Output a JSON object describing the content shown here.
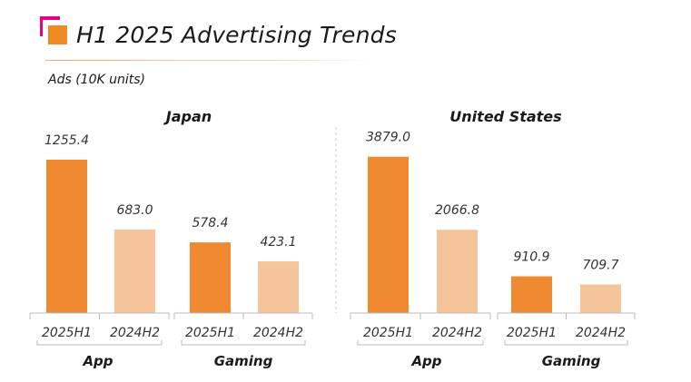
{
  "header": {
    "title": "H1 2025 Advertising Trends",
    "unit_label": "Ads (10K units)"
  },
  "colors": {
    "current": "#f08a30",
    "previous": "#f6c49a",
    "brand_pink": "#e6007e",
    "brand_orange": "#f08a24"
  },
  "chart_data": {
    "type": "bar",
    "ylabel": "Ads (10K units)",
    "panels": [
      {
        "title": "Japan",
        "ylim": [
          0,
          1300
        ],
        "groups": [
          {
            "name": "App",
            "bars": [
              {
                "label": "2025H1",
                "value": 1255.4
              },
              {
                "label": "2024H2",
                "value": 683.0
              }
            ]
          },
          {
            "name": "Gaming",
            "bars": [
              {
                "label": "2025H1",
                "value": 578.4
              },
              {
                "label": "2024H2",
                "value": 423.1
              }
            ]
          }
        ]
      },
      {
        "title": "United States",
        "ylim": [
          0,
          3940
        ],
        "groups": [
          {
            "name": "App",
            "bars": [
              {
                "label": "2025H1",
                "value": 3879.0
              },
              {
                "label": "2024H2",
                "value": 2066.8
              }
            ]
          },
          {
            "name": "Gaming",
            "bars": [
              {
                "label": "2025H1",
                "value": 910.9
              },
              {
                "label": "2024H2",
                "value": 709.7
              }
            ]
          }
        ]
      }
    ]
  }
}
